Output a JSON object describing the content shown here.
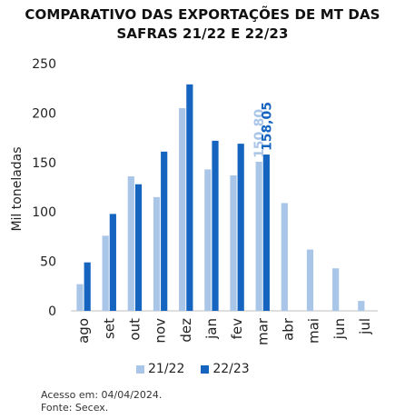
{
  "title": {
    "line1": "COMPARATIVO DAS EXPORTAÇÕES DE MT DAS",
    "line2": "SAFRAS 21/22 E 22/23"
  },
  "chart_data": {
    "type": "bar",
    "ylabel": "Mil toneladas",
    "ylim": [
      0,
      250
    ],
    "yticks": [
      0,
      50,
      100,
      150,
      200,
      250
    ],
    "categories": [
      "ago",
      "set",
      "out",
      "nov",
      "dez",
      "jan",
      "fev",
      "mar",
      "abr",
      "mai",
      "jun",
      "jul"
    ],
    "series": [
      {
        "name": "21/22",
        "color": "#a9c6e8",
        "values": [
          27,
          76,
          136,
          115,
          205,
          143,
          137,
          150.8,
          109,
          62,
          43,
          10
        ]
      },
      {
        "name": "22/23",
        "color": "#1565c0",
        "values": [
          49,
          98,
          128,
          161,
          229,
          172,
          169,
          158.05,
          null,
          null,
          null,
          null
        ]
      }
    ],
    "annotations": [
      {
        "text": "150,80",
        "series": 0,
        "category": "mar"
      },
      {
        "text": "158,05",
        "series": 1,
        "category": "mar"
      }
    ],
    "grid": false,
    "legend": "bottom"
  },
  "footer": {
    "access": "Acesso em: 04/04/2024.",
    "source": "Fonte: Secex."
  }
}
